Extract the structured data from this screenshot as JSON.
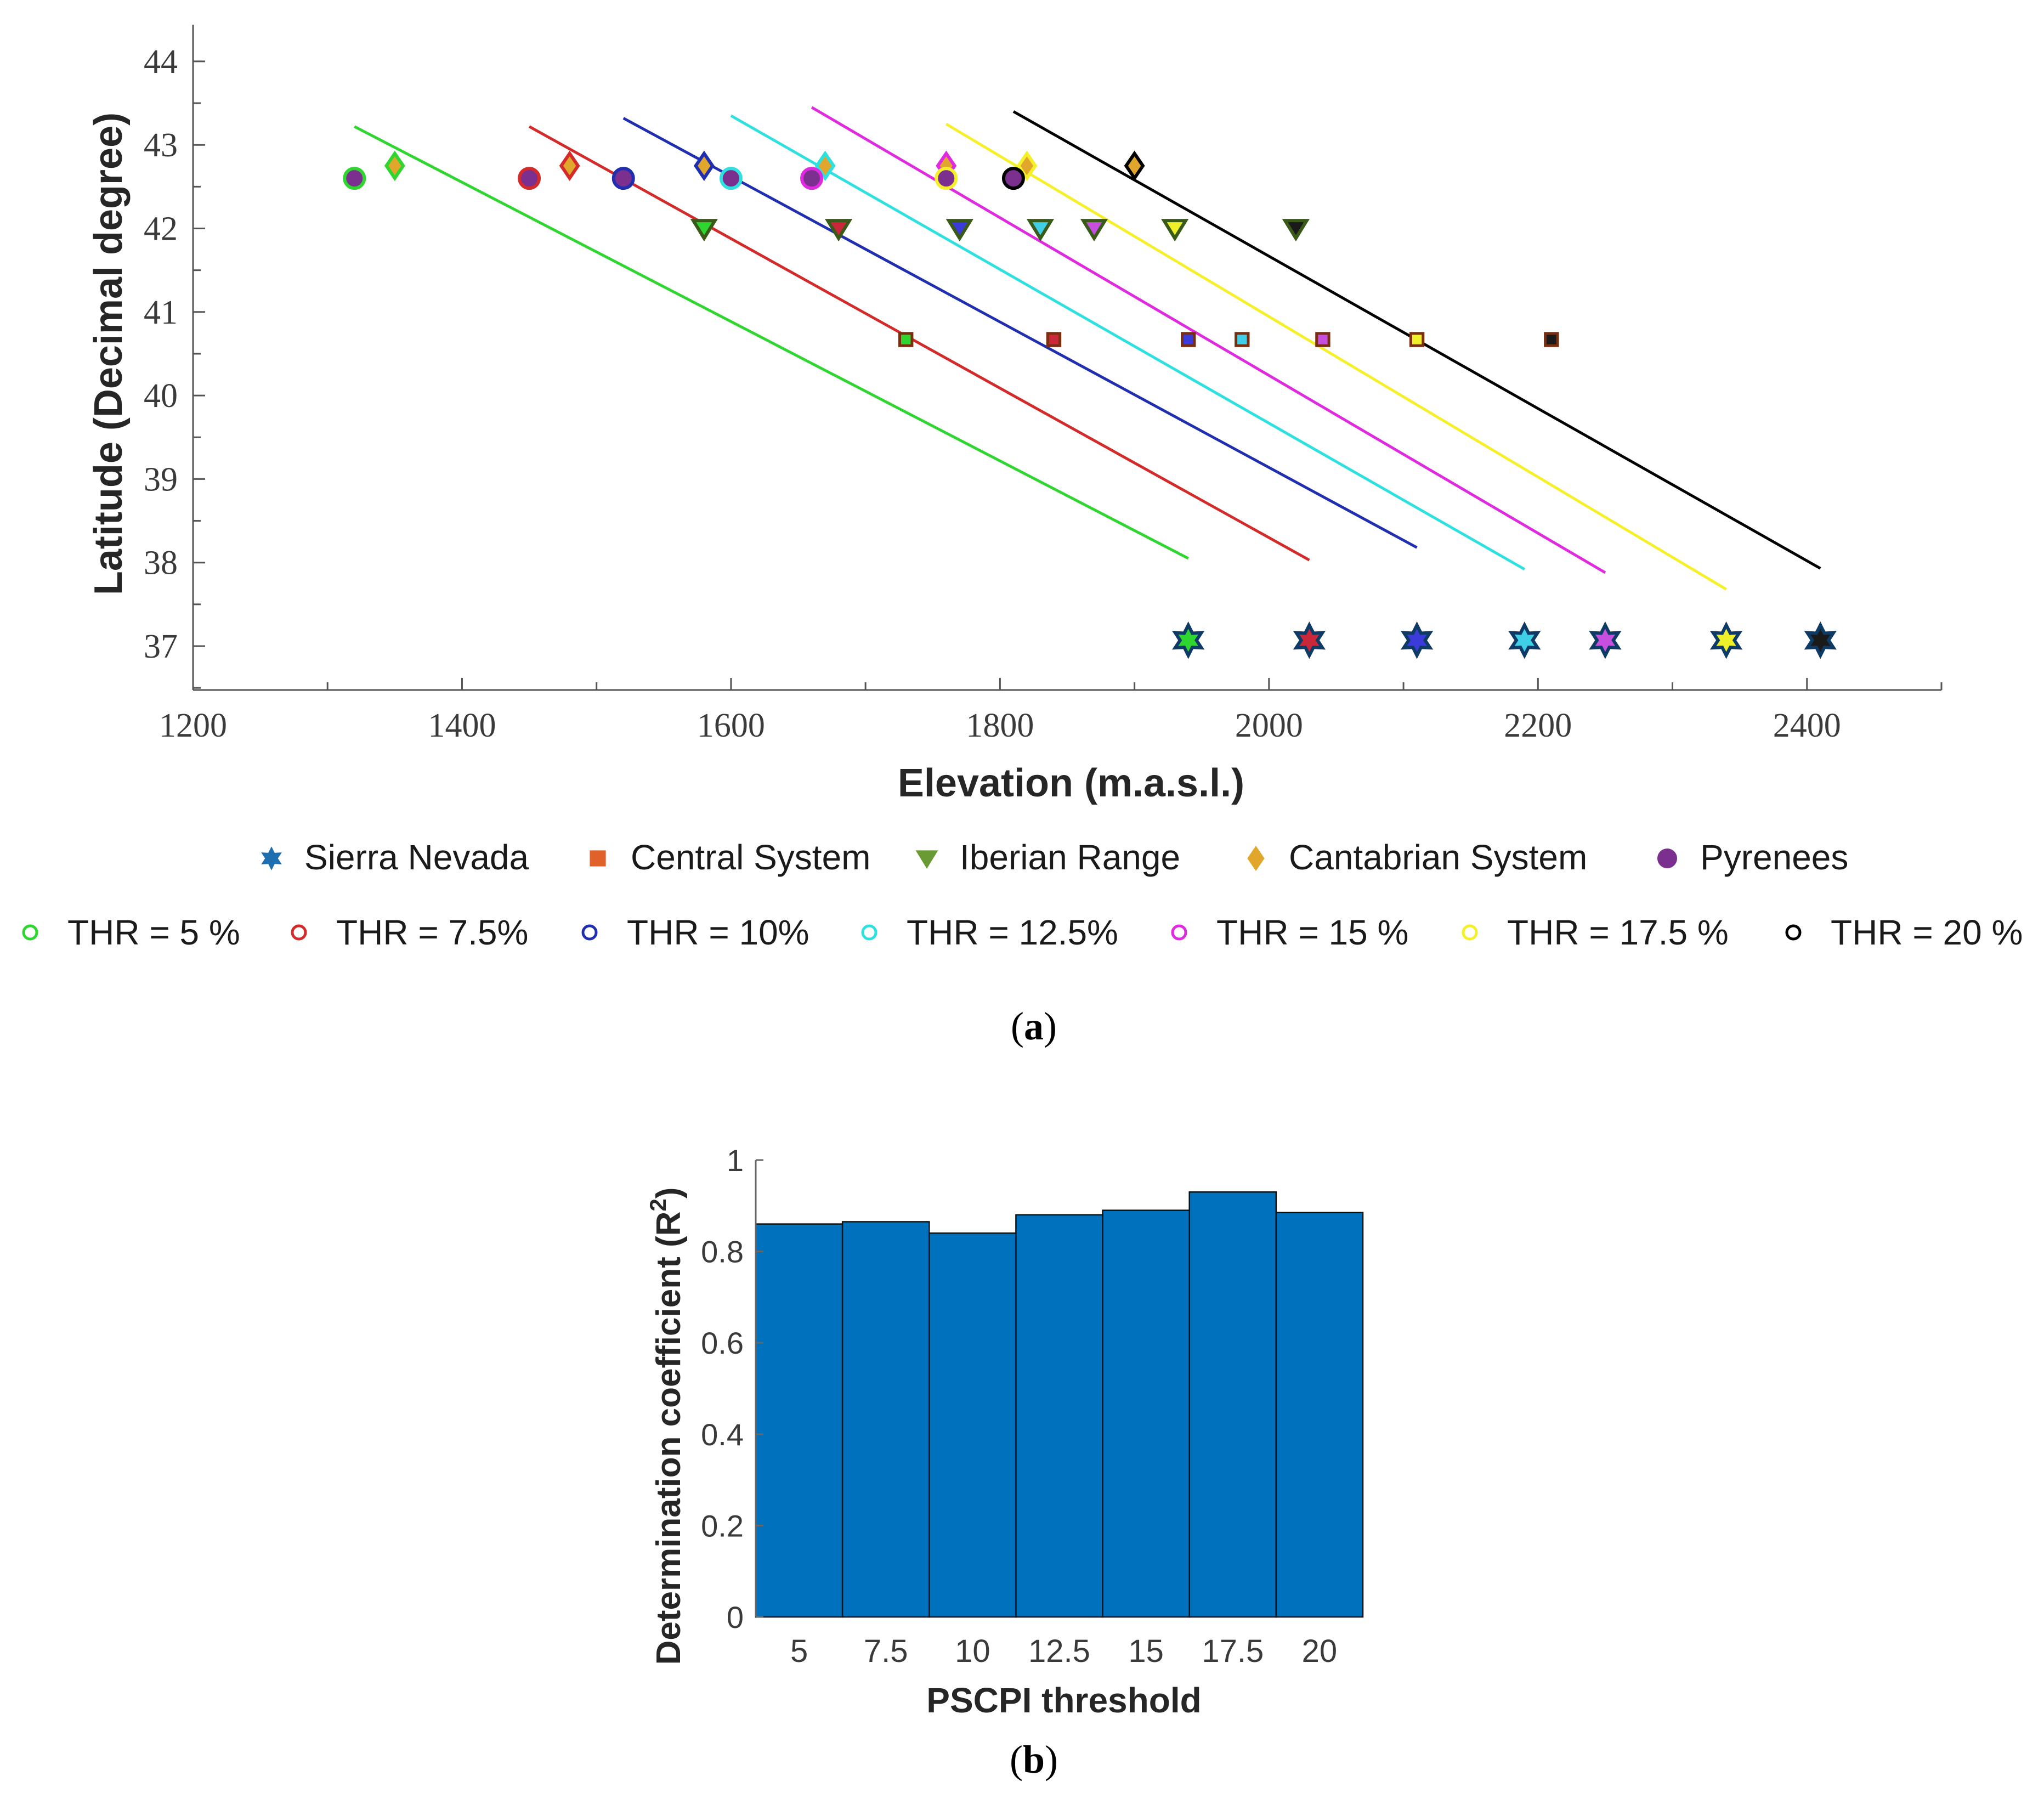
{
  "chart_data": [
    {
      "type": "scatter",
      "panel_label": "a",
      "xlabel": "Elevation (m.a.s.l.)",
      "ylabel": "Latitude (Decimal degree)",
      "xlim": [
        1200,
        2500
      ],
      "ylim": [
        36.5,
        44.5
      ],
      "xticks": [
        1200,
        1400,
        1600,
        1800,
        2000,
        2200,
        2400
      ],
      "yticks": [
        37,
        38,
        39,
        40,
        41,
        42,
        43,
        44
      ],
      "ranges": [
        {
          "name": "Sierra Nevada",
          "marker": "hexagram",
          "lat": 37.07,
          "legend_color": "#1f6fb0"
        },
        {
          "name": "Central System",
          "marker": "square",
          "lat": 40.67,
          "legend_color": "#e0622a"
        },
        {
          "name": "Iberian Range",
          "marker": "triangle-down",
          "lat": 42.0,
          "legend_color": "#6a9a34"
        },
        {
          "name": "Cantabrian System",
          "marker": "diamond",
          "lat": 42.75,
          "legend_color": "#e0a72c"
        },
        {
          "name": "Pyrenees",
          "marker": "circle",
          "lat": 42.6,
          "legend_color": "#7b2f8e"
        }
      ],
      "series": [
        {
          "name": "THR = 5 %",
          "color": "#2fd62f",
          "fill": "#2fd62f",
          "elevations": {
            "Sierra Nevada": 1940,
            "Central System": 1730,
            "Iberian Range": 1580,
            "Cantabrian System": 1350,
            "Pyrenees": 1320
          },
          "fit_line": {
            "x": [
              1320,
              1940
            ],
            "y": [
              43.22,
              38.05
            ]
          }
        },
        {
          "name": "THR = 7.5%",
          "color": "#d42a2a",
          "fill": "#c8283a",
          "elevations": {
            "Sierra Nevada": 2030,
            "Central System": 1840,
            "Iberian Range": 1680,
            "Cantabrian System": 1480,
            "Pyrenees": 1450
          },
          "fit_line": {
            "x": [
              1450,
              2030
            ],
            "y": [
              43.22,
              38.03
            ]
          }
        },
        {
          "name": "THR = 10%",
          "color": "#1f2fb0",
          "fill": "#3b3bd9",
          "elevations": {
            "Sierra Nevada": 2110,
            "Central System": 1940,
            "Iberian Range": 1770,
            "Cantabrian System": 1580,
            "Pyrenees": 1520
          },
          "fit_line": {
            "x": [
              1520,
              2110
            ],
            "y": [
              43.32,
              38.18
            ]
          }
        },
        {
          "name": "THR = 12.5%",
          "color": "#2fe0e0",
          "fill": "#3fd0e8",
          "elevations": {
            "Sierra Nevada": 2190,
            "Central System": 1980,
            "Iberian Range": 1830,
            "Cantabrian System": 1670,
            "Pyrenees": 1600
          },
          "fit_line": {
            "x": [
              1600,
              2190
            ],
            "y": [
              43.35,
              37.92
            ]
          }
        },
        {
          "name": "THR = 15 %",
          "color": "#e02ae0",
          "fill": "#c64fe0",
          "elevations": {
            "Sierra Nevada": 2250,
            "Central System": 2040,
            "Iberian Range": 1870,
            "Cantabrian System": 1760,
            "Pyrenees": 1660
          },
          "fit_line": {
            "x": [
              1660,
              2250
            ],
            "y": [
              43.45,
              37.88
            ]
          }
        },
        {
          "name": "THR = 17.5 %",
          "color": "#f5f02a",
          "fill": "#eef02a",
          "elevations": {
            "Sierra Nevada": 2340,
            "Central System": 2110,
            "Iberian Range": 1930,
            "Cantabrian System": 1820,
            "Pyrenees": 1760
          },
          "fit_line": {
            "x": [
              1760,
              2340
            ],
            "y": [
              43.25,
              37.68
            ]
          }
        },
        {
          "name": "THR = 20 %",
          "color": "#000000",
          "fill": "#1a1a1a",
          "elevations": {
            "Sierra Nevada": 2410,
            "Central System": 2210,
            "Iberian Range": 2020,
            "Cantabrian System": 1900,
            "Pyrenees": 1810
          },
          "fit_line": {
            "x": [
              1810,
              2410
            ],
            "y": [
              43.4,
              37.93
            ]
          }
        }
      ]
    },
    {
      "type": "bar",
      "panel_label": "b",
      "xlabel": "PSCPI threshold",
      "ylabel": "Determination coefficient (R",
      "ylabel_sup": "2",
      "ylabel_close": ")",
      "categories": [
        "5",
        "7.5",
        "10",
        "12.5",
        "15",
        "17.5",
        "20"
      ],
      "values": [
        0.86,
        0.865,
        0.84,
        0.88,
        0.89,
        0.93,
        0.885
      ],
      "ylim": [
        0,
        1
      ],
      "yticks": [
        "0",
        "0.2",
        "0.4",
        "0.6",
        "0.8",
        "1"
      ],
      "bar_color": "#0072bd"
    }
  ],
  "captions": {
    "a_open": "(",
    "a_label": "a",
    "a_close": ")",
    "b_open": "(",
    "b_label": "b",
    "b_close": ")"
  }
}
